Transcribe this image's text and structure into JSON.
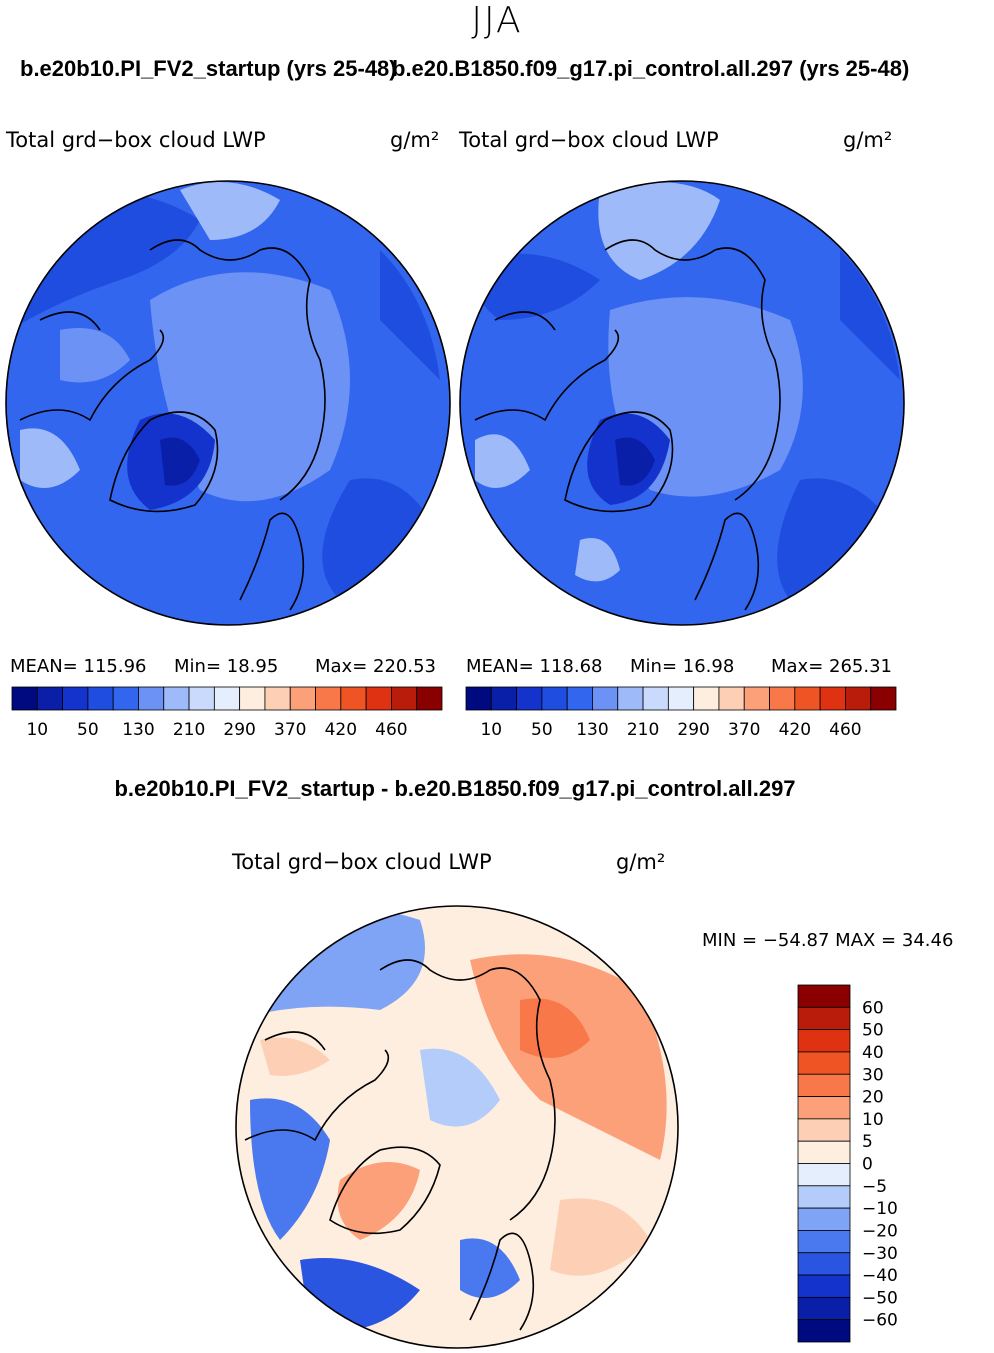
{
  "header": {
    "season": "JJA",
    "case1_title": "b.e20b10.PI_FV2_startup (yrs 25-48)",
    "case2_title": "b.e20.B1850.f09_g17.pi_control.all.297 (yrs 25-48)",
    "diff_title": "b.e20b10.PI_FV2_startup - b.e20.B1850.f09_g17.pi_control.all.297"
  },
  "panels": {
    "left": {
      "variable": "Total grd−box cloud LWP",
      "units": "g/m²",
      "mean_label": "MEAN= 115.96",
      "min_label": "Min=  18.95",
      "max_label": "Max= 220.53"
    },
    "right": {
      "variable": "Total grd−box cloud LWP",
      "units": "g/m²",
      "mean_label": "MEAN= 118.68",
      "min_label": "Min=  16.98",
      "max_label": "Max= 265.31"
    },
    "diff": {
      "variable": "Total grd−box cloud LWP",
      "units": "g/m²",
      "minmax_label": "MIN = −54.87  MAX =   34.46"
    }
  },
  "chart_data": [
    {
      "type": "heatmap",
      "title": "b.e20b10.PI_FV2_startup (yrs 25-48)",
      "variable": "Total grd-box cloud LWP",
      "units": "g/m2",
      "projection": "north polar stereographic",
      "stats": {
        "mean": 115.96,
        "min": 18.95,
        "max": 220.53
      },
      "colorbar_levels": [
        10,
        50,
        130,
        210,
        290,
        370,
        420,
        460
      ],
      "colorbar_colors": [
        "#000a80",
        "#0a1fa8",
        "#1433cc",
        "#1f4de0",
        "#3366ee",
        "#6d92f5",
        "#9fbaf9",
        "#c9dafc",
        "#e4eefd",
        "#fdeee0",
        "#fdd0b5",
        "#fca07a",
        "#f8784a",
        "#ef5425",
        "#de3212",
        "#b91c0a",
        "#8a0000"
      ]
    },
    {
      "type": "heatmap",
      "title": "b.e20.B1850.f09_g17.pi_control.all.297 (yrs 25-48)",
      "variable": "Total grd-box cloud LWP",
      "units": "g/m2",
      "projection": "north polar stereographic",
      "stats": {
        "mean": 118.68,
        "min": 16.98,
        "max": 265.31
      },
      "colorbar_levels": [
        10,
        50,
        130,
        210,
        290,
        370,
        420,
        460
      ],
      "colorbar_colors": [
        "#000a80",
        "#0a1fa8",
        "#1433cc",
        "#1f4de0",
        "#3366ee",
        "#6d92f5",
        "#9fbaf9",
        "#c9dafc",
        "#e4eefd",
        "#fdeee0",
        "#fdd0b5",
        "#fca07a",
        "#f8784a",
        "#ef5425",
        "#de3212",
        "#b91c0a",
        "#8a0000"
      ]
    },
    {
      "type": "heatmap",
      "title": "b.e20b10.PI_FV2_startup - b.e20.B1850.f09_g17.pi_control.all.297",
      "variable": "Total grd-box cloud LWP",
      "units": "g/m2",
      "projection": "north polar stereographic",
      "stats": {
        "min": -54.87,
        "max": 34.46
      },
      "colorbar_levels": [
        60,
        50,
        40,
        30,
        20,
        10,
        5,
        0,
        -5,
        -10,
        -20,
        -30,
        -40,
        -50,
        -60
      ],
      "colorbar_level_labels": [
        "60",
        "50",
        "40",
        "30",
        "20",
        "10",
        "5",
        "0",
        "−5",
        "−10",
        "−20",
        "−30",
        "−40",
        "−50",
        "−60"
      ],
      "colorbar_colors": [
        "#8a0000",
        "#b91c0a",
        "#de3212",
        "#ef5425",
        "#f8784a",
        "#fca07a",
        "#fdd0b5",
        "#fdeee0",
        "#e4eefd",
        "#b3ccfa",
        "#7fa3f5",
        "#4a78ee",
        "#2a55e0",
        "#1433cc",
        "#0a1fa8",
        "#000a80"
      ]
    }
  ]
}
